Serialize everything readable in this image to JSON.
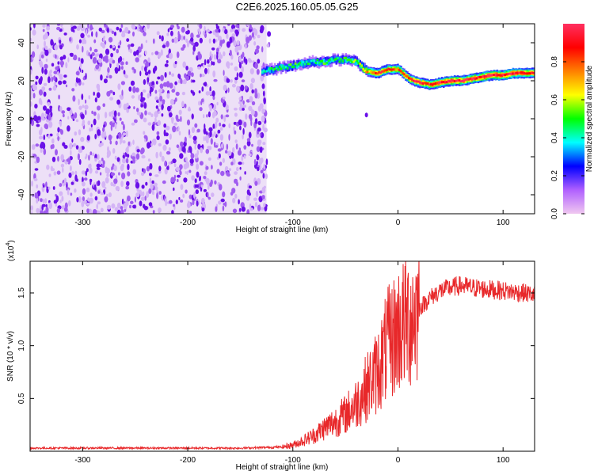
{
  "title": "C2E6.2025.160.05.05.G25",
  "chart_data": [
    {
      "type": "heatmap",
      "xlabel": "Height of straight line (km)",
      "ylabel": "Frequency (Hz)",
      "xlim": [
        -350,
        130
      ],
      "ylim": [
        -50,
        50
      ],
      "x_ticks": [
        -300,
        -200,
        -100,
        0,
        100
      ],
      "x_tick_labels": [
        "-300",
        "-200",
        "-100",
        "0",
        "100"
      ],
      "y_ticks": [
        -40,
        -20,
        0,
        20,
        40
      ],
      "y_tick_labels": [
        "-40",
        "-20",
        "0",
        "20",
        "40"
      ],
      "colorbar": {
        "label": "Normalized spectral amplitude",
        "range": [
          0,
          1
        ],
        "ticks": [
          0.0,
          0.2,
          0.4,
          0.6,
          0.8
        ],
        "tick_labels": [
          "0.0",
          "0.2",
          "0.4",
          "0.6",
          "0.8"
        ],
        "colors": [
          "#f0c8f0",
          "#b060ff",
          "#0000ff",
          "#00ffff",
          "#00ff00",
          "#ffff00",
          "#ff8000",
          "#ff0000",
          "#ff3060"
        ]
      },
      "noise_region": {
        "x_range": [
          -350,
          -125
        ],
        "y_range": [
          -50,
          50
        ],
        "level": 0.15
      },
      "ridge": {
        "x": [
          -130,
          -120,
          -110,
          -100,
          -90,
          -80,
          -70,
          -60,
          -50,
          -40,
          -30,
          -20,
          -10,
          0,
          10,
          20,
          30,
          40,
          50,
          60,
          70,
          80,
          90,
          100,
          110,
          120,
          130
        ],
        "y": [
          25,
          26,
          27,
          28,
          29,
          30,
          30,
          31,
          31,
          30,
          25,
          24,
          26,
          26,
          21,
          19,
          18,
          19,
          20,
          20,
          21,
          22,
          23,
          23,
          24,
          24,
          24
        ],
        "amplitude": [
          0.4,
          0.45,
          0.45,
          0.5,
          0.45,
          0.45,
          0.5,
          0.45,
          0.5,
          0.55,
          0.7,
          0.85,
          0.85,
          0.8,
          0.85,
          0.9,
          0.9,
          0.95,
          0.95,
          0.95,
          0.95,
          1.0,
          1.0,
          1.0,
          1.0,
          0.95,
          0.95
        ]
      },
      "isolated_spot": {
        "x": -30,
        "y": 2
      }
    },
    {
      "type": "line",
      "xlabel": "Height of straight line (km)",
      "ylabel": "SNR (10 * v/v)",
      "y_multiplier": "(x10",
      "y_exponent": "4",
      "y_multiplier_close": ")",
      "xlim": [
        -350,
        130
      ],
      "ylim": [
        0,
        18000
      ],
      "x_ticks": [
        -300,
        -200,
        -100,
        0,
        100
      ],
      "x_tick_labels": [
        "-300",
        "-200",
        "-100",
        "0",
        "100"
      ],
      "y_ticks": [
        5000,
        10000,
        15000
      ],
      "y_tick_labels": [
        "0.5",
        "1.0",
        "1.5"
      ],
      "line_color": "#e8282a",
      "series": [
        {
          "x": [
            -350,
            -300,
            -250,
            -200,
            -150,
            -110,
            -100,
            -90,
            -80,
            -70,
            -60,
            -50,
            -40,
            -30,
            -20,
            -10,
            0,
            10,
            20,
            30,
            40,
            50,
            60,
            70,
            80,
            90,
            100,
            110,
            120,
            130
          ],
          "values": [
            300,
            300,
            300,
            300,
            300,
            400,
            600,
            1000,
            1500,
            2200,
            2800,
            3500,
            4500,
            6000,
            7500,
            10000,
            11500,
            12500,
            13500,
            14500,
            15200,
            15500,
            15700,
            15500,
            15400,
            15300,
            15200,
            15100,
            15000,
            14800
          ]
        }
      ]
    }
  ]
}
